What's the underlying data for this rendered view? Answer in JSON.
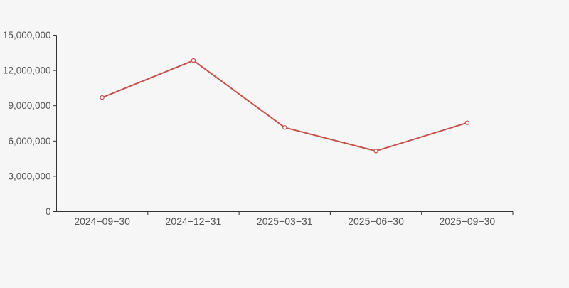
{
  "page": {
    "background": "#f6f6f6"
  },
  "chart_data": {
    "type": "line",
    "title": "",
    "categories": [
      "2024−09−30",
      "2024−12−31",
      "2025−03−31",
      "2025−06−30",
      "2025−09−30"
    ],
    "values": [
      9700000,
      12850000,
      7150000,
      5150000,
      7550000
    ],
    "xlabel": "",
    "ylabel": "",
    "ylim": [
      0,
      15000000
    ],
    "y_ticks": [
      0,
      3000000,
      6000000,
      9000000,
      12000000,
      15000000
    ],
    "y_tick_labels": [
      "0",
      "3,000,000",
      "6,000,000",
      "9,000,000",
      "12,000,000",
      "15,000,000"
    ],
    "grid": false,
    "legend": false,
    "legend_position": "none",
    "line_color": "#c4514c",
    "marker_style": "hollow-circle",
    "marker_fill": "#f9f8f8",
    "axis_color": "#333333",
    "label_color": "#555555"
  }
}
